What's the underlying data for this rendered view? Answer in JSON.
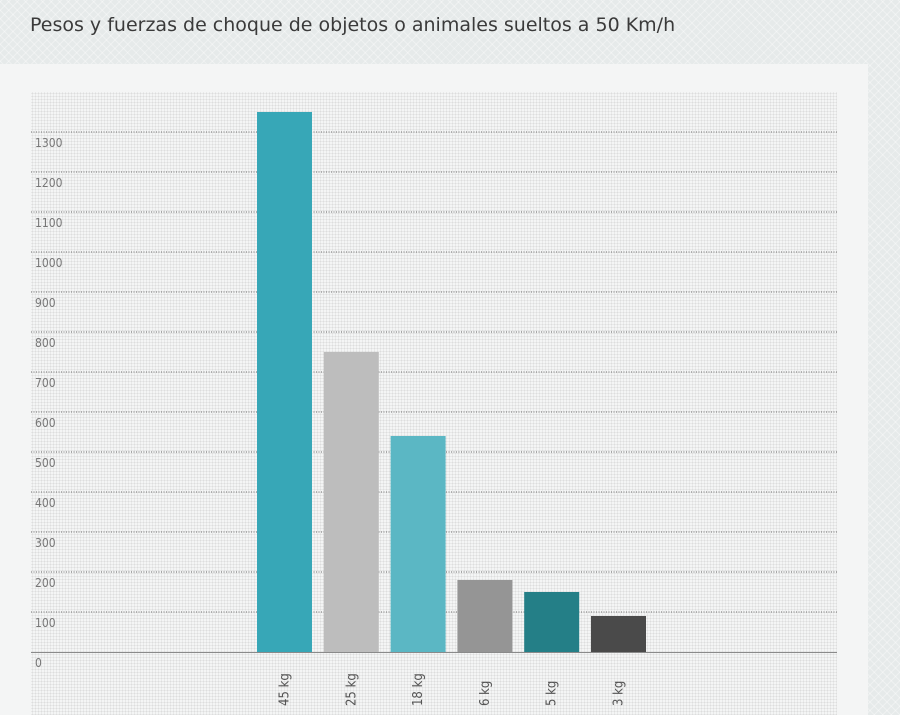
{
  "page": {
    "title": "Pesos y fuerzas de choque de objetos o animales sueltos a 50 Km/h"
  },
  "chart_data": {
    "type": "bar",
    "title": "Pesos y fuerzas de choque de objetos o animales sueltos a 50 Km/h",
    "xlabel": "",
    "ylabel": "",
    "categories": [
      "45 kg",
      "25 kg",
      "18 kg",
      "6 kg",
      "5 kg",
      "3 kg"
    ],
    "values": [
      1350,
      750,
      540,
      180,
      150,
      90
    ],
    "colors": [
      "#37a7b7",
      "#bdbdbd",
      "#5bb7c4",
      "#959595",
      "#247f87",
      "#4a4a4a"
    ],
    "ylim": [
      0,
      1350
    ],
    "yticks": [
      0,
      100,
      200,
      300,
      400,
      500,
      600,
      700,
      800,
      900,
      1000,
      1100,
      1200,
      1300
    ],
    "grid": true,
    "legend": "none"
  }
}
